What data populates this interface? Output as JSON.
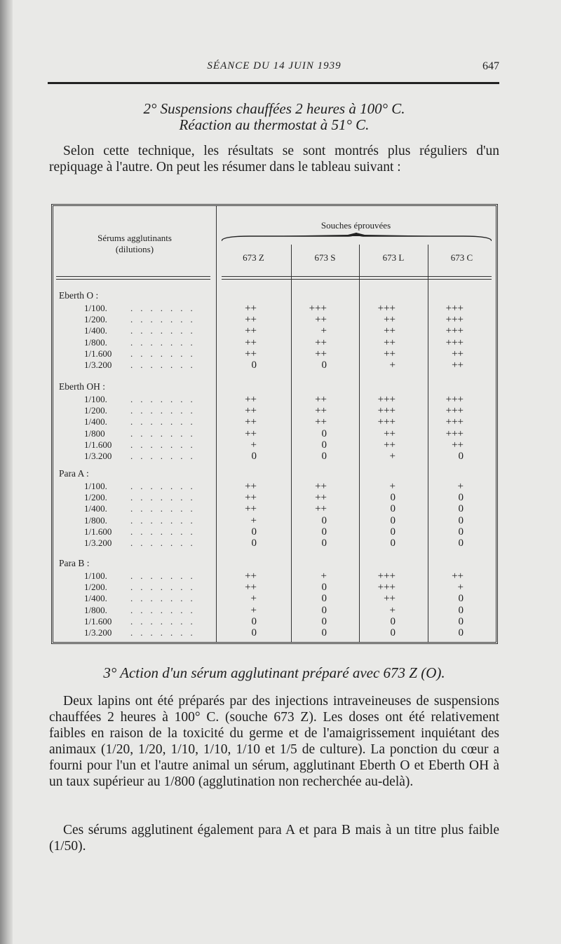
{
  "header": {
    "running_title": "SÉANCE DU 14 JUIN 1939",
    "page_number": "647"
  },
  "section2": {
    "title_line1": "2° Suspensions chauffées 2 heures à 100° C.",
    "title_line2": "Réaction au thermostat à 51° C.",
    "paragraph": "Selon cette technique, les résultats se sont montrés plus réguliers d'un repiquage à l'autre. On peut les résumer dans le tableau suivant :"
  },
  "table": {
    "row_header_line1": "Sérums agglutinants",
    "row_header_line2": "(dilutions)",
    "column_group": "Souches éprouvées",
    "columns": [
      "673 Z",
      "673 S",
      "673 L",
      "673 C"
    ],
    "groups": [
      {
        "label": "Eberth O :",
        "rows": [
          {
            "dilution": "1/100.",
            "values": [
              "++",
              "+++",
              "+++",
              "+++"
            ]
          },
          {
            "dilution": "1/200.",
            "values": [
              "++",
              "++",
              "++",
              "+++"
            ]
          },
          {
            "dilution": "1/400.",
            "values": [
              "++",
              "+",
              "++",
              "+++"
            ]
          },
          {
            "dilution": "1/800.",
            "values": [
              "++",
              "++",
              "++",
              "+++"
            ]
          },
          {
            "dilution": "1/1.600",
            "values": [
              "++",
              "++",
              "++",
              "++"
            ]
          },
          {
            "dilution": "1/3.200",
            "values": [
              "0",
              "0",
              "+",
              "++"
            ]
          }
        ]
      },
      {
        "label": "Eberth OH :",
        "rows": [
          {
            "dilution": "1/100.",
            "values": [
              "++",
              "++",
              "+++",
              "+++"
            ]
          },
          {
            "dilution": "1/200.",
            "values": [
              "++",
              "++",
              "+++",
              "+++"
            ]
          },
          {
            "dilution": "1/400.",
            "values": [
              "++",
              "++",
              "+++",
              "+++"
            ]
          },
          {
            "dilution": "1/800",
            "values": [
              "++",
              "0",
              "++",
              "+++"
            ]
          },
          {
            "dilution": "1/1.600",
            "values": [
              "+",
              "0",
              "++",
              "++"
            ]
          },
          {
            "dilution": "1/3.200",
            "values": [
              "0",
              "0",
              "+",
              "0"
            ]
          }
        ]
      },
      {
        "label": "Para A :",
        "rows": [
          {
            "dilution": "1/100.",
            "values": [
              "++",
              "++",
              "+",
              "+"
            ]
          },
          {
            "dilution": "1/200.",
            "values": [
              "++",
              "++",
              "0",
              "0"
            ]
          },
          {
            "dilution": "1/400.",
            "values": [
              "++",
              "++",
              "0",
              "0"
            ]
          },
          {
            "dilution": "1/800.",
            "values": [
              "+",
              "0",
              "0",
              "0"
            ]
          },
          {
            "dilution": "1/1.600",
            "values": [
              "0",
              "0",
              "0",
              "0"
            ]
          },
          {
            "dilution": "1/3.200",
            "values": [
              "0",
              "0",
              "0",
              "0"
            ]
          }
        ]
      },
      {
        "label": "Para B :",
        "rows": [
          {
            "dilution": "1/100.",
            "values": [
              "++",
              "+",
              "+++",
              "++"
            ]
          },
          {
            "dilution": "1/200.",
            "values": [
              "++",
              "0",
              "+++",
              "+"
            ]
          },
          {
            "dilution": "1/400.",
            "values": [
              "+",
              "0",
              "++",
              "0"
            ]
          },
          {
            "dilution": "1/800.",
            "values": [
              "+",
              "0",
              "+",
              "0"
            ]
          },
          {
            "dilution": "1/1.600",
            "values": [
              "0",
              "0",
              "0",
              "0"
            ]
          },
          {
            "dilution": "1/3.200",
            "values": [
              "0",
              "0",
              "0",
              "0"
            ]
          }
        ]
      }
    ]
  },
  "section3": {
    "title": "3° Action d'un sérum agglutinant préparé avec 673 Z (O).",
    "paragraph1": "Deux lapins ont été préparés par des injections intraveineuses de suspensions chauffées 2 heures à 100° C. (souche 673 Z). Les doses ont été relativement faibles en raison de la toxicité du germe et de l'amaigrissement inquiétant des animaux (1/20, 1/20, 1/10, 1/10, 1/10 et 1/5 de culture). La ponction du cœur a fourni pour l'un et l'autre animal un sérum, agglutinant Eberth O et Eberth OH à un taux supérieur au 1/800 (agglutination non recherchée au-delà).",
    "paragraph2": "Ces sérums agglutinent également para A et para B mais à un titre plus faible (1/50)."
  }
}
